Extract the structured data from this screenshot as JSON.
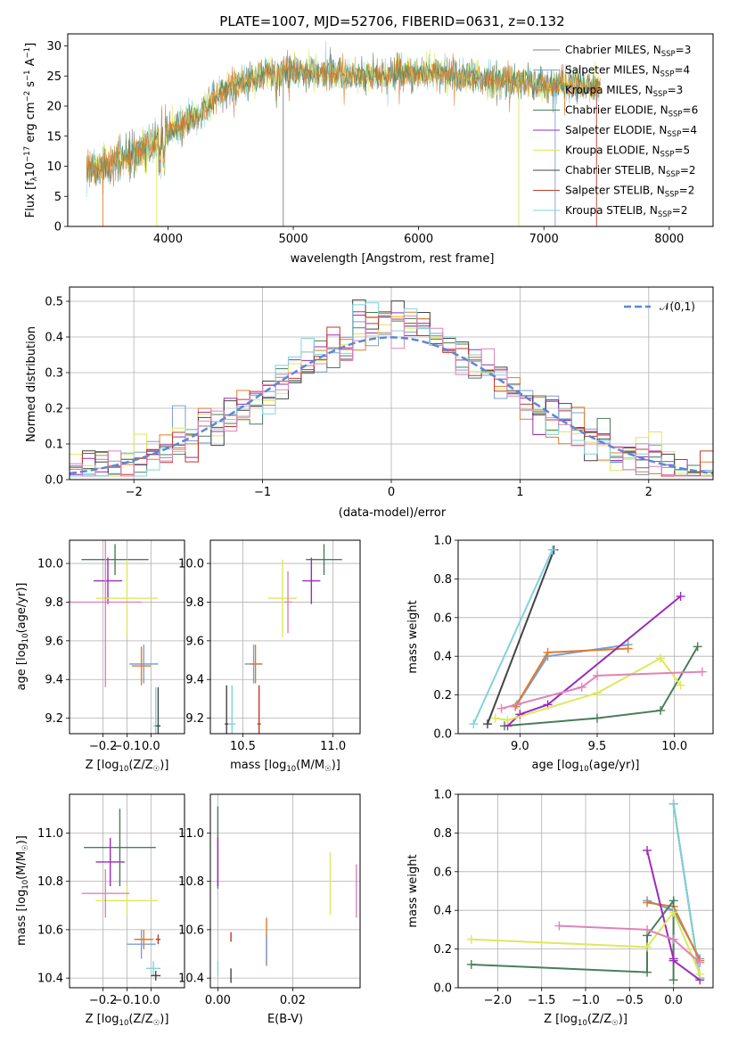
{
  "colors": [
    "#808080",
    "#7b9fd6",
    "#e07b2c",
    "#4a7d5a",
    "#9b2cb8",
    "#dde85a",
    "#444444",
    "#c0392b",
    "#7fd3dc",
    "#e083b8"
  ],
  "chart_data": [
    {
      "id": "spectrum",
      "type": "line",
      "title": "PLATE=1007, MJD=52706, FIBERID=0631, z=0.132",
      "xlabel": "wavelength [Angstrom, rest frame]",
      "ylabel": "Flux [f_λ 10^-17 erg cm^-2 s^-1 A^-1]",
      "xlim": [
        3200,
        8350
      ],
      "ylim": [
        0,
        32
      ],
      "xticks": [
        4000,
        5000,
        6000,
        7000,
        8000
      ],
      "yticks": [
        0,
        5,
        10,
        15,
        20,
        25,
        30
      ],
      "x_range": [
        3350,
        7450
      ],
      "continuum": [
        [
          3350,
          9
        ],
        [
          3500,
          10
        ],
        [
          3650,
          11.5
        ],
        [
          3800,
          12.5
        ],
        [
          3950,
          15
        ],
        [
          4100,
          17
        ],
        [
          4250,
          18.5
        ],
        [
          4400,
          22
        ],
        [
          4600,
          24
        ],
        [
          4800,
          25.5
        ],
        [
          5000,
          26
        ],
        [
          5300,
          25.5
        ],
        [
          5600,
          25
        ],
        [
          5900,
          25.5
        ],
        [
          6200,
          25.5
        ],
        [
          6500,
          24.5
        ],
        [
          6800,
          24
        ],
        [
          7100,
          23.5
        ],
        [
          7300,
          23.5
        ],
        [
          7450,
          23
        ]
      ],
      "series": [
        {
          "name": "Chabrier MILES",
          "n_ssp": "3"
        },
        {
          "name": "Salpeter MILES",
          "n_ssp": "4"
        },
        {
          "name": "Kroupa MILES",
          "n_ssp": "3"
        },
        {
          "name": "Chabrier ELODIE",
          "n_ssp": "6"
        },
        {
          "name": "Salpeter ELODIE",
          "n_ssp": "4"
        },
        {
          "name": "Kroupa ELODIE",
          "n_ssp": "5"
        },
        {
          "name": "Chabrier STELIB",
          "n_ssp": "2"
        },
        {
          "name": "Salpeter STELIB",
          "n_ssp": "2"
        },
        {
          "name": "Kroupa STELIB",
          "n_ssp": "2"
        }
      ],
      "legend_text": [
        "Chabrier MILES, N_SSP=3",
        "Salpeter MILES, N_SSP=4",
        "Kroupa MILES, N_SSP=3",
        "Chabrier ELODIE, N_SSP=6",
        "Salpeter ELODIE, N_SSP=4",
        "Kroupa ELODIE, N_SSP=5",
        "Chabrier STELIB, N_SSP=2",
        "Salpeter STELIB, N_SSP=2",
        "Kroupa STELIB, N_SSP=2"
      ],
      "legend_colors": [
        "#808080",
        "#7b9fd6",
        "#e07b2c",
        "#4a7d5a",
        "#9b2cb8",
        "#dde85a",
        "#444444",
        "#c0392b",
        "#7fd3dc"
      ],
      "legend_position": "upper right"
    },
    {
      "id": "residuals",
      "type": "line",
      "xlabel": "(data-model)/error",
      "ylabel": "Normed distribution",
      "xlim": [
        -2.5,
        2.5
      ],
      "ylim": [
        0,
        0.54
      ],
      "xticks": [
        -2,
        -1,
        0,
        1,
        2
      ],
      "yticks": [
        0.0,
        0.1,
        0.2,
        0.3,
        0.4,
        0.5
      ],
      "grid": true,
      "reference_label": "𝒩(0,1)",
      "reference_color": "#5b87d6",
      "bin_width": 0.1,
      "legend_position": "upper right"
    },
    {
      "id": "age_vs_Z",
      "type": "scatter",
      "xlabel": "Z [log10(Z/Z☉)]",
      "ylabel": "age [log10(age/yr)]",
      "xlim": [
        -0.34,
        0.14
      ],
      "ylim": [
        9.12,
        10.12
      ],
      "xticks": [
        -0.2,
        -0.1,
        0.0
      ],
      "yticks": [
        9.2,
        9.4,
        9.6,
        9.8,
        10.0
      ],
      "points": [
        {
          "x": -0.03,
          "y": 9.48,
          "xerr": 0.06,
          "yerr": 0.1,
          "c": "#7b9fd6"
        },
        {
          "x": -0.04,
          "y": 9.47,
          "xerr": 0.04,
          "yerr": 0.1,
          "c": "#e07b2c"
        },
        {
          "x": -0.15,
          "y": 10.02,
          "xerr": 0.14,
          "yerr": 0.08,
          "c": "#4a7d5a"
        },
        {
          "x": -0.18,
          "y": 9.91,
          "xerr": 0.06,
          "yerr": 0.12,
          "c": "#9b2cb8"
        },
        {
          "x": -0.1,
          "y": 9.82,
          "xerr": 0.13,
          "yerr": 0.2,
          "c": "#dde85a"
        },
        {
          "x": -0.19,
          "y": 9.8,
          "xerr": 0.15,
          "yerr": 0.44,
          "c": "#e083b8"
        },
        {
          "x": 0.02,
          "y": 9.16,
          "xerr": 0.01,
          "yerr": 0.2,
          "c": "#7fd3dc"
        },
        {
          "x": 0.03,
          "y": 9.16,
          "xerr": 0.01,
          "yerr": 0.2,
          "c": "#444444"
        }
      ]
    },
    {
      "id": "age_vs_mass",
      "type": "scatter",
      "xlabel": "mass [log10(M/M☉)]",
      "ylabel": "",
      "xlim": [
        10.32,
        11.15
      ],
      "ylim": [
        9.12,
        10.12
      ],
      "xticks": [
        10.5,
        11.0
      ],
      "yticks": [
        9.2,
        9.4,
        9.6,
        9.8,
        10.0
      ],
      "points": [
        {
          "x": 10.56,
          "y": 9.48,
          "xerr": 0.05,
          "yerr": 0.1,
          "c": "#7b9fd6"
        },
        {
          "x": 10.57,
          "y": 9.48,
          "xerr": 0.03,
          "yerr": 0.1,
          "c": "#e07b2c"
        },
        {
          "x": 10.95,
          "y": 10.02,
          "xerr": 0.1,
          "yerr": 0.08,
          "c": "#4a7d5a"
        },
        {
          "x": 10.88,
          "y": 9.91,
          "xerr": 0.05,
          "yerr": 0.12,
          "c": "#9b2cb8"
        },
        {
          "x": 10.72,
          "y": 9.82,
          "xerr": 0.08,
          "yerr": 0.2,
          "c": "#dde85a"
        },
        {
          "x": 10.75,
          "y": 9.8,
          "xerr": 0.02,
          "yerr": 0.16,
          "c": "#e083b8"
        },
        {
          "x": 10.44,
          "y": 9.17,
          "xerr": 0.02,
          "yerr": 0.2,
          "c": "#7fd3dc"
        },
        {
          "x": 10.41,
          "y": 9.17,
          "xerr": 0.01,
          "yerr": 0.2,
          "c": "#444444"
        },
        {
          "x": 10.59,
          "y": 9.17,
          "xerr": 0.01,
          "yerr": 0.2,
          "c": "#c0392b"
        }
      ]
    },
    {
      "id": "weight_vs_age",
      "type": "line",
      "xlabel": "age [log10(age/yr)]",
      "ylabel": "mass weight",
      "xlim": [
        8.6,
        10.25
      ],
      "ylim": [
        0,
        1.0
      ],
      "xticks": [
        9.0,
        9.5,
        10.0
      ],
      "yticks": [
        0.0,
        0.2,
        0.4,
        0.6,
        0.8,
        1.0
      ],
      "grid": true,
      "series": [
        {
          "c": "#444444",
          "points": [
            [
              8.79,
              0.05
            ],
            [
              9.22,
              0.95
            ]
          ]
        },
        {
          "c": "#7fd3dc",
          "points": [
            [
              8.7,
              0.05
            ],
            [
              9.21,
              0.95
            ]
          ]
        },
        {
          "c": "#7b9fd6",
          "points": [
            [
              8.98,
              0.15
            ],
            [
              9.18,
              0.4
            ],
            [
              9.7,
              0.46
            ]
          ]
        },
        {
          "c": "#e07b2c",
          "points": [
            [
              8.97,
              0.14
            ],
            [
              9.18,
              0.42
            ],
            [
              9.7,
              0.44
            ]
          ]
        },
        {
          "c": "#4a7d5a",
          "points": [
            [
              8.9,
              0.04
            ],
            [
              9.5,
              0.08
            ],
            [
              9.91,
              0.12
            ],
            [
              10.15,
              0.45
            ]
          ]
        },
        {
          "c": "#9b2cb8",
          "points": [
            [
              8.92,
              0.04
            ],
            [
              9.0,
              0.1
            ],
            [
              9.18,
              0.15
            ],
            [
              10.04,
              0.71
            ]
          ]
        },
        {
          "c": "#dde85a",
          "points": [
            [
              8.84,
              0.08
            ],
            [
              8.92,
              0.07
            ],
            [
              9.5,
              0.21
            ],
            [
              9.91,
              0.39
            ],
            [
              10.04,
              0.25
            ]
          ]
        },
        {
          "c": "#e083b8",
          "points": [
            [
              8.88,
              0.13
            ],
            [
              9.4,
              0.24
            ],
            [
              9.5,
              0.3
            ],
            [
              10.18,
              0.32
            ]
          ]
        }
      ]
    },
    {
      "id": "mass_vs_Z",
      "type": "scatter",
      "xlabel": "Z [log10(Z/Z☉)]",
      "ylabel": "mass [log10(M/M☉)]",
      "xlim": [
        -0.34,
        0.14
      ],
      "ylim": [
        10.36,
        11.16
      ],
      "xticks": [
        -0.2,
        -0.1,
        0.0
      ],
      "yticks": [
        10.4,
        10.6,
        10.8,
        11.0
      ],
      "points": [
        {
          "x": -0.04,
          "y": 10.54,
          "xerr": 0.06,
          "yerr": 0.06,
          "c": "#7b9fd6"
        },
        {
          "x": -0.03,
          "y": 10.56,
          "xerr": 0.04,
          "yerr": 0.04,
          "c": "#e07b2c"
        },
        {
          "x": -0.13,
          "y": 10.94,
          "xerr": 0.15,
          "yerr": 0.16,
          "c": "#4a7d5a"
        },
        {
          "x": -0.17,
          "y": 10.88,
          "xerr": 0.06,
          "yerr": 0.1,
          "c": "#9b2cb8"
        },
        {
          "x": -0.1,
          "y": 10.72,
          "xerr": 0.13,
          "yerr": 0.06,
          "c": "#dde85a"
        },
        {
          "x": -0.19,
          "y": 10.75,
          "xerr": 0.1,
          "yerr": 0.1,
          "c": "#e083b8"
        },
        {
          "x": 0.01,
          "y": 10.44,
          "xerr": 0.03,
          "yerr": 0.03,
          "c": "#7fd3dc"
        },
        {
          "x": 0.02,
          "y": 10.41,
          "xerr": 0.02,
          "yerr": 0.02,
          "c": "#444444"
        },
        {
          "x": 0.03,
          "y": 10.56,
          "xerr": 0.01,
          "yerr": 0.02,
          "c": "#c0392b"
        }
      ]
    },
    {
      "id": "mass_vs_ebv",
      "type": "scatter",
      "xlabel": "E(B-V)",
      "ylabel": "",
      "xlim": [
        -0.002,
        0.038
      ],
      "ylim": [
        10.36,
        11.16
      ],
      "xticks": [
        0.0,
        0.02
      ],
      "yticks": [
        10.4,
        10.6,
        10.8,
        11.0
      ],
      "points": [
        {
          "x": 0.0,
          "y": 10.94,
          "yerr": 0.17,
          "c": "#4a7d5a"
        },
        {
          "x": 0.0,
          "y": 10.88,
          "yerr": 0.1,
          "c": "#9b2cb8"
        },
        {
          "x": 0.0,
          "y": 10.44,
          "yerr": 0.03,
          "c": "#7fd3dc"
        },
        {
          "x": 0.0035,
          "y": 10.41,
          "yerr": 0.03,
          "c": "#444444"
        },
        {
          "x": 0.0035,
          "y": 10.57,
          "yerr": 0.02,
          "c": "#c0392b"
        },
        {
          "x": 0.013,
          "y": 10.55,
          "yerr": 0.1,
          "c": "#e07b2c"
        },
        {
          "x": 0.013,
          "y": 10.52,
          "yerr": 0.06,
          "c": "#7b9fd6"
        },
        {
          "x": 0.03,
          "y": 10.79,
          "yerr": 0.13,
          "c": "#dde85a"
        },
        {
          "x": 0.037,
          "y": 10.76,
          "yerr": 0.11,
          "c": "#e083b8"
        }
      ]
    },
    {
      "id": "weight_vs_Z",
      "type": "line",
      "xlabel": "Z [log10(Z/Z☉)]",
      "ylabel": "mass weight",
      "xlim": [
        -2.45,
        0.45
      ],
      "ylim": [
        0,
        1.0
      ],
      "xticks": [
        -2.0,
        -1.5,
        -1.0,
        -0.5,
        0.0
      ],
      "yticks": [
        0.0,
        0.2,
        0.4,
        0.6,
        0.8,
        1.0
      ],
      "grid": true,
      "series": [
        {
          "c": "#444444",
          "points": [
            [
              0.0,
              0.95
            ],
            [
              0.3,
              0.05
            ]
          ]
        },
        {
          "c": "#7fd3dc",
          "points": [
            [
              0.0,
              0.95
            ],
            [
              0.3,
              0.05
            ]
          ]
        },
        {
          "c": "#7b9fd6",
          "points": [
            [
              -0.3,
              0.45
            ],
            [
              0.0,
              0.4
            ],
            [
              0.3,
              0.15
            ]
          ]
        },
        {
          "c": "#e07b2c",
          "points": [
            [
              -0.3,
              0.44
            ],
            [
              0.0,
              0.42
            ],
            [
              0.3,
              0.14
            ]
          ]
        },
        {
          "c": "#4a7d5a",
          "points": [
            [
              -2.3,
              0.12
            ],
            [
              -0.3,
              0.08
            ],
            [
              -0.3,
              0.27
            ],
            [
              0.0,
              0.45
            ],
            [
              0.0,
              0.04
            ]
          ]
        },
        {
          "c": "#9b2cb8",
          "points": [
            [
              -0.3,
              0.71
            ],
            [
              0.0,
              0.15
            ],
            [
              0.0,
              0.14
            ],
            [
              0.3,
              0.04
            ]
          ]
        },
        {
          "c": "#dde85a",
          "points": [
            [
              -2.3,
              0.25
            ],
            [
              -0.3,
              0.21
            ],
            [
              0.0,
              0.39
            ],
            [
              0.3,
              0.07
            ]
          ]
        },
        {
          "c": "#e083b8",
          "points": [
            [
              -1.3,
              0.32
            ],
            [
              -0.3,
              0.3
            ],
            [
              0.0,
              0.25
            ],
            [
              0.3,
              0.13
            ]
          ]
        }
      ]
    }
  ]
}
